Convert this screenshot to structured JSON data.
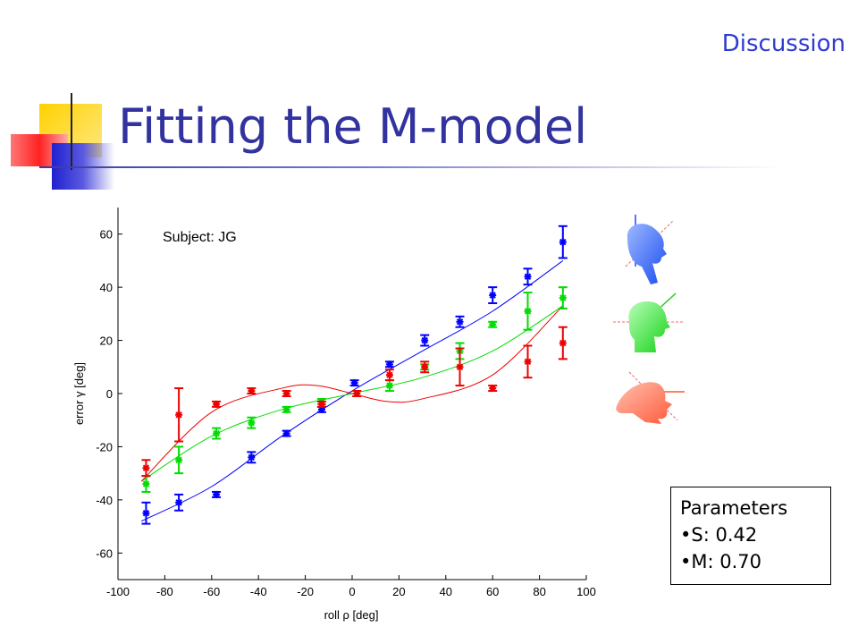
{
  "slide": {
    "section": "Discussion",
    "title": "Fitting the M-model"
  },
  "params": {
    "heading": "Parameters",
    "items": [
      "S: 0.42",
      "M: 0.70"
    ]
  },
  "icons": {
    "head_blue": "head-tilted-left-icon",
    "head_green": "head-upright-icon",
    "head_red": "head-tilted-right-icon"
  },
  "colors": {
    "title": "#3333a0",
    "section": "#2f3bd0",
    "series_blue": "#0000ff",
    "series_green": "#00dd00",
    "series_red": "#ee0000"
  },
  "chart_data": {
    "type": "scatter",
    "annotation": "Subject: JG",
    "xlabel": "roll ρ [deg]",
    "ylabel": "error γ [deg]",
    "xlim": [
      -100,
      100
    ],
    "ylim": [
      -70,
      70
    ],
    "xticks": [
      -100,
      -80,
      -60,
      -40,
      -20,
      0,
      20,
      40,
      60,
      80,
      100
    ],
    "yticks": [
      -60,
      -40,
      -20,
      0,
      20,
      40,
      60
    ],
    "grid": false,
    "series": [
      {
        "color": "#0000ff",
        "x": [
          -88,
          -74,
          -58,
          -43,
          -28,
          -13,
          1,
          16,
          31,
          46,
          60,
          75,
          90
        ],
        "y": [
          -45,
          -41,
          -38,
          -24,
          -15,
          -6,
          4,
          11,
          20,
          27,
          37,
          44,
          57
        ],
        "err": [
          4,
          3,
          1,
          2,
          1,
          1,
          1,
          1,
          2,
          2,
          3,
          3,
          6
        ],
        "fit": [
          [
            -90,
            -48
          ],
          [
            -60,
            -35
          ],
          [
            -30,
            -16
          ],
          [
            0,
            1
          ],
          [
            30,
            16
          ],
          [
            60,
            31
          ],
          [
            90,
            50
          ]
        ]
      },
      {
        "color": "#00dd00",
        "x": [
          -88,
          -74,
          -58,
          -43,
          -28,
          -13,
          2,
          16,
          31,
          46,
          60,
          75,
          90
        ],
        "y": [
          -34,
          -25,
          -15,
          -11,
          -6,
          -3,
          0,
          3,
          10,
          16,
          26,
          31,
          36
        ],
        "err": [
          3,
          5,
          2,
          2,
          1,
          1,
          1,
          2,
          1,
          3,
          1,
          7,
          4
        ],
        "fit": [
          [
            -90,
            -33
          ],
          [
            -60,
            -16
          ],
          [
            -30,
            -6
          ],
          [
            0,
            0
          ],
          [
            30,
            6
          ],
          [
            60,
            16
          ],
          [
            90,
            33
          ]
        ]
      },
      {
        "color": "#ee0000",
        "x": [
          -88,
          -74,
          -58,
          -43,
          -28,
          -13,
          2,
          16,
          31,
          46,
          60,
          75,
          90
        ],
        "y": [
          -28,
          -8,
          -4,
          1,
          0,
          -4,
          0,
          7,
          10,
          10,
          2,
          12,
          19
        ],
        "err": [
          3,
          10,
          1,
          1,
          1,
          1,
          1,
          2,
          2,
          7,
          1,
          6,
          6
        ],
        "fit": [
          [
            -90,
            -33
          ],
          [
            -60,
            -7
          ],
          [
            -30,
            2
          ],
          [
            -15,
            3
          ],
          [
            0,
            0
          ],
          [
            15,
            -3
          ],
          [
            30,
            -2
          ],
          [
            60,
            7
          ],
          [
            90,
            33
          ]
        ]
      }
    ]
  }
}
